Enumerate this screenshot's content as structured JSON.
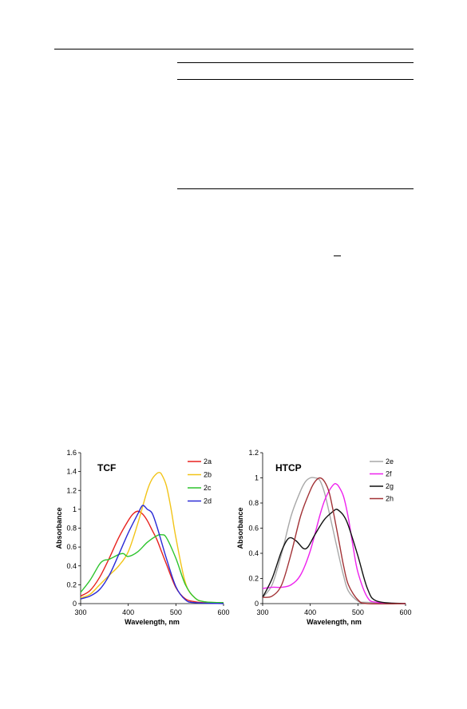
{
  "chart_data": [
    {
      "type": "line",
      "title": "TCF",
      "xlabel": "Wavelength, nm",
      "ylabel": "Absorbance",
      "xlim": [
        300,
        600
      ],
      "ylim": [
        0,
        1.6
      ],
      "xticks": [
        "300",
        "400",
        "500",
        "600"
      ],
      "yticks": [
        "0",
        "0.2",
        "0.4",
        "0.6",
        "0.8",
        "1",
        "1.2",
        "1.4",
        "1.6"
      ],
      "legend": "top-right",
      "series": [
        {
          "name": "2a",
          "color": "#e8221e",
          "x": [
            300,
            320,
            340,
            360,
            380,
            400,
            410,
            420,
            430,
            440,
            450,
            460,
            470,
            480,
            500,
            520,
            540,
            560,
            600
          ],
          "y": [
            0.08,
            0.14,
            0.28,
            0.48,
            0.7,
            0.88,
            0.95,
            0.98,
            0.95,
            0.88,
            0.78,
            0.68,
            0.55,
            0.42,
            0.17,
            0.05,
            0.02,
            0.01,
            0.01
          ]
        },
        {
          "name": "2b",
          "color": "#f2c418",
          "x": [
            300,
            320,
            340,
            360,
            380,
            400,
            420,
            440,
            450,
            460,
            465,
            470,
            480,
            490,
            500,
            520,
            540,
            560,
            600
          ],
          "y": [
            0.06,
            0.1,
            0.2,
            0.3,
            0.4,
            0.55,
            0.85,
            1.2,
            1.32,
            1.38,
            1.39,
            1.37,
            1.25,
            1.0,
            0.7,
            0.22,
            0.06,
            0.02,
            0.01
          ]
        },
        {
          "name": "2c",
          "color": "#2dc42d",
          "x": [
            300,
            320,
            340,
            350,
            360,
            380,
            390,
            400,
            420,
            440,
            460,
            470,
            480,
            500,
            520,
            540,
            560,
            600
          ],
          "y": [
            0.12,
            0.25,
            0.42,
            0.46,
            0.47,
            0.52,
            0.53,
            0.5,
            0.55,
            0.65,
            0.72,
            0.73,
            0.7,
            0.48,
            0.2,
            0.06,
            0.02,
            0.01
          ]
        },
        {
          "name": "2d",
          "color": "#2a2ad6",
          "x": [
            300,
            320,
            340,
            360,
            380,
            400,
            420,
            430,
            440,
            450,
            460,
            470,
            480,
            500,
            520,
            540,
            600
          ],
          "y": [
            0.05,
            0.08,
            0.15,
            0.3,
            0.52,
            0.75,
            0.95,
            1.04,
            1.0,
            0.96,
            0.82,
            0.65,
            0.48,
            0.18,
            0.04,
            0.01,
            0.0
          ]
        }
      ]
    },
    {
      "type": "line",
      "title": "HTCP",
      "xlabel": "Wavelength, nm",
      "ylabel": "Absorbance",
      "xlim": [
        300,
        600
      ],
      "ylim": [
        0,
        1.2
      ],
      "xticks": [
        "300",
        "400",
        "500",
        "600"
      ],
      "yticks": [
        "0",
        "0.2",
        "0.4",
        "0.6",
        "0.8",
        "1",
        "1.2"
      ],
      "legend": "top-right",
      "series": [
        {
          "name": "2e",
          "color": "#a8a8a8",
          "x": [
            300,
            320,
            340,
            360,
            380,
            390,
            400,
            410,
            420,
            430,
            440,
            450,
            460,
            470,
            480,
            500,
            520,
            600
          ],
          "y": [
            0.05,
            0.15,
            0.4,
            0.7,
            0.9,
            0.97,
            1.0,
            1.0,
            0.98,
            0.88,
            0.72,
            0.55,
            0.38,
            0.22,
            0.1,
            0.02,
            0.01,
            0.0
          ]
        },
        {
          "name": "2f",
          "color": "#ee22ee",
          "x": [
            300,
            320,
            340,
            360,
            380,
            400,
            420,
            430,
            440,
            450,
            455,
            460,
            470,
            480,
            490,
            500,
            520,
            540,
            600
          ],
          "y": [
            0.12,
            0.13,
            0.13,
            0.15,
            0.23,
            0.42,
            0.7,
            0.82,
            0.9,
            0.95,
            0.95,
            0.93,
            0.85,
            0.68,
            0.45,
            0.25,
            0.05,
            0.01,
            0.0
          ]
        },
        {
          "name": "2g",
          "color": "#111111",
          "x": [
            300,
            320,
            340,
            355,
            370,
            385,
            395,
            410,
            430,
            450,
            455,
            460,
            470,
            480,
            500,
            520,
            540,
            600
          ],
          "y": [
            0.05,
            0.2,
            0.42,
            0.52,
            0.5,
            0.44,
            0.45,
            0.55,
            0.67,
            0.74,
            0.75,
            0.74,
            0.7,
            0.62,
            0.38,
            0.12,
            0.02,
            0.0
          ]
        },
        {
          "name": "2h",
          "color": "#a23236",
          "x": [
            300,
            320,
            340,
            360,
            380,
            400,
            410,
            420,
            430,
            440,
            450,
            460,
            470,
            480,
            500,
            520,
            600
          ],
          "y": [
            0.05,
            0.06,
            0.15,
            0.4,
            0.7,
            0.9,
            0.97,
            1.0,
            0.97,
            0.88,
            0.7,
            0.5,
            0.3,
            0.15,
            0.03,
            0.0,
            0.0
          ]
        }
      ]
    }
  ]
}
